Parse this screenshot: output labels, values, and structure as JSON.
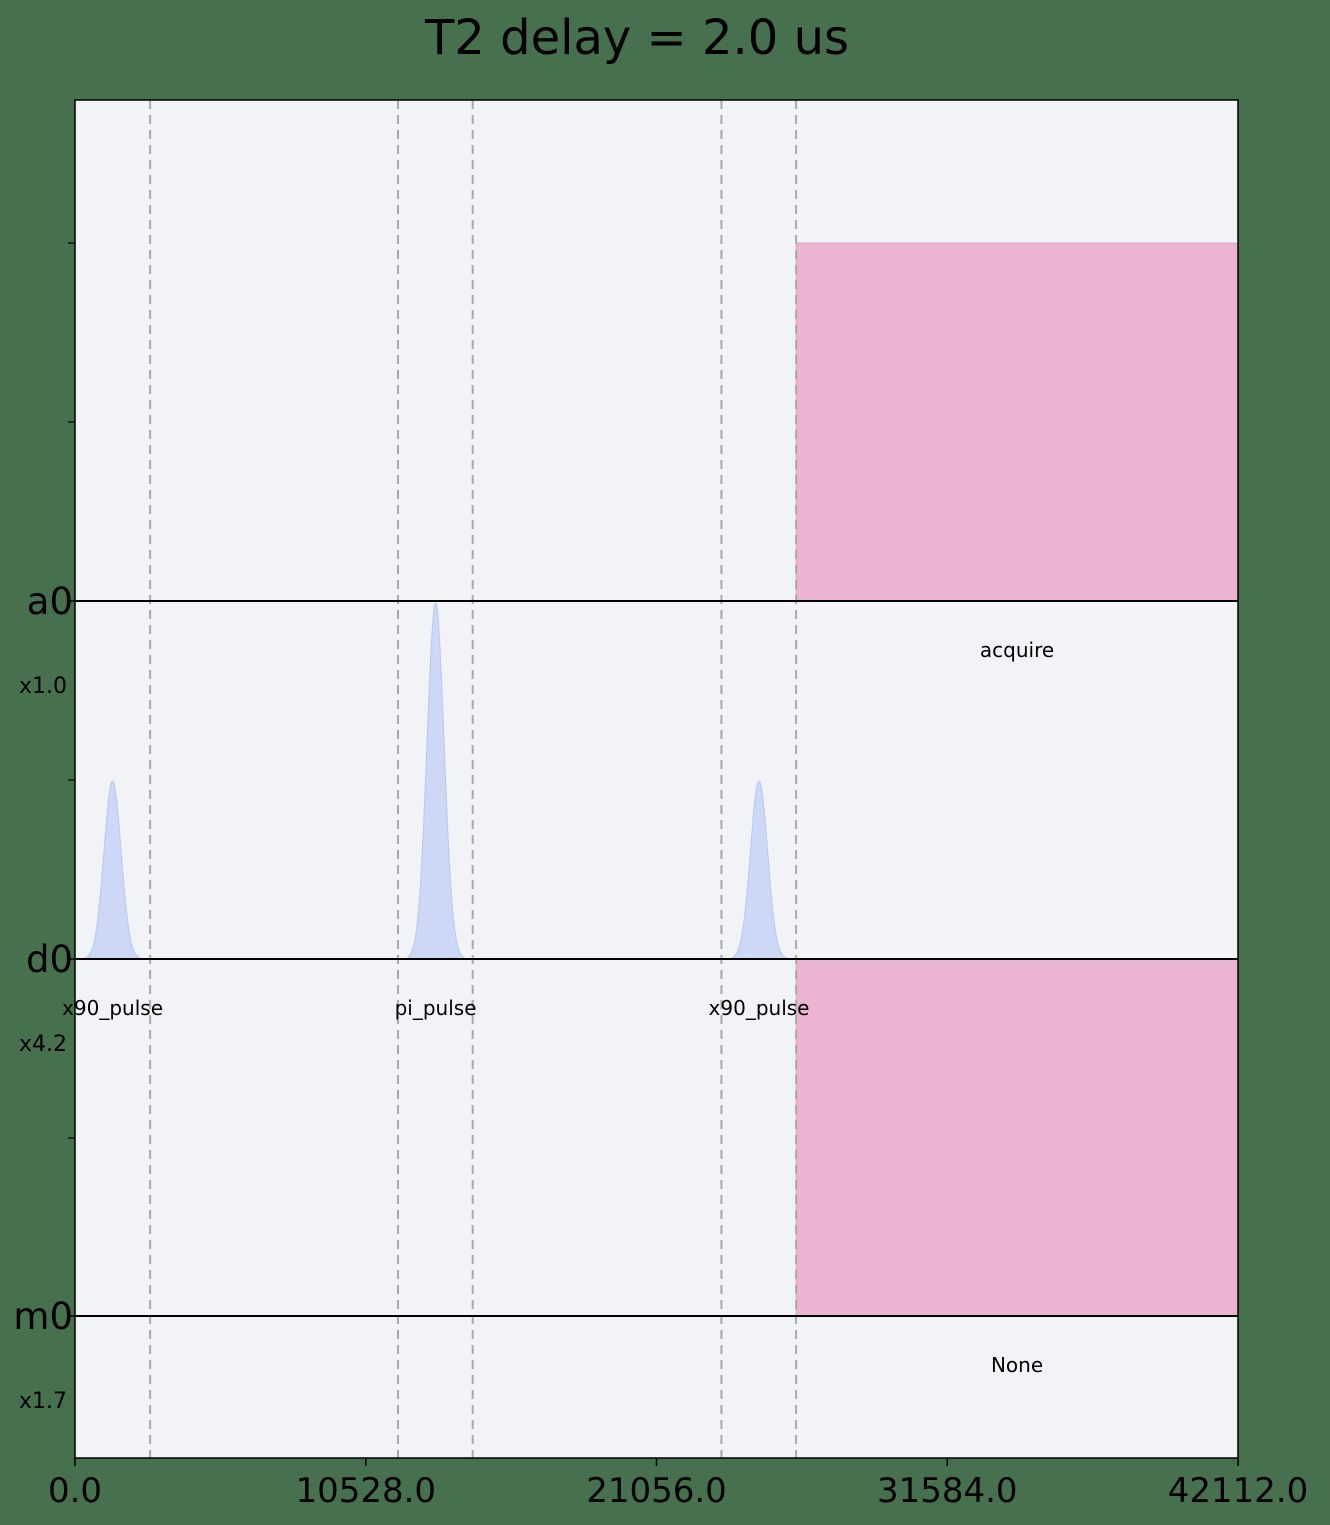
{
  "chart_data": {
    "type": "pulse_schedule",
    "title": "T2 delay = 2.0 us",
    "xlim": [
      0,
      42112
    ],
    "x_ticks": [
      "0.0",
      "10528.0",
      "21056.0",
      "31584.0",
      "42112.0"
    ],
    "x_tick_values": [
      0,
      10528,
      21056,
      31584,
      42112
    ],
    "channels": [
      {
        "name": "a0",
        "scale": "x1.0"
      },
      {
        "name": "d0",
        "scale": "x4.2"
      },
      {
        "name": "m0",
        "scale": "x1.7"
      }
    ],
    "barriers": [
      2720,
      11696,
      14400,
      23408,
      26112
    ],
    "pulses": [
      {
        "channel": "d0",
        "type": "gaussian",
        "label": "x90_pulse",
        "start": 352,
        "end": 2368,
        "center": 1360,
        "amplitude": 0.5
      },
      {
        "channel": "d0",
        "type": "gaussian",
        "label": "pi_pulse",
        "start": 12048,
        "end": 14064,
        "center": 13056,
        "amplitude": 1.0
      },
      {
        "channel": "d0",
        "type": "gaussian",
        "label": "x90_pulse",
        "start": 23760,
        "end": 25776,
        "center": 24768,
        "amplitude": 0.5
      }
    ],
    "blocks": [
      {
        "channel": "a0",
        "label": "acquire",
        "start": 26112,
        "end": 42112,
        "amplitude": 1.0
      },
      {
        "channel": "m0",
        "label": "None",
        "start": 26112,
        "end": 42112,
        "amplitude": 1.0
      }
    ],
    "colors": {
      "background": "#47704f",
      "plot_face": "#f2f3f6",
      "gaussian": "#ccd8f6",
      "block": "#eab4d2",
      "barrier": "#a9a9a9",
      "baseline": "#000000"
    }
  }
}
